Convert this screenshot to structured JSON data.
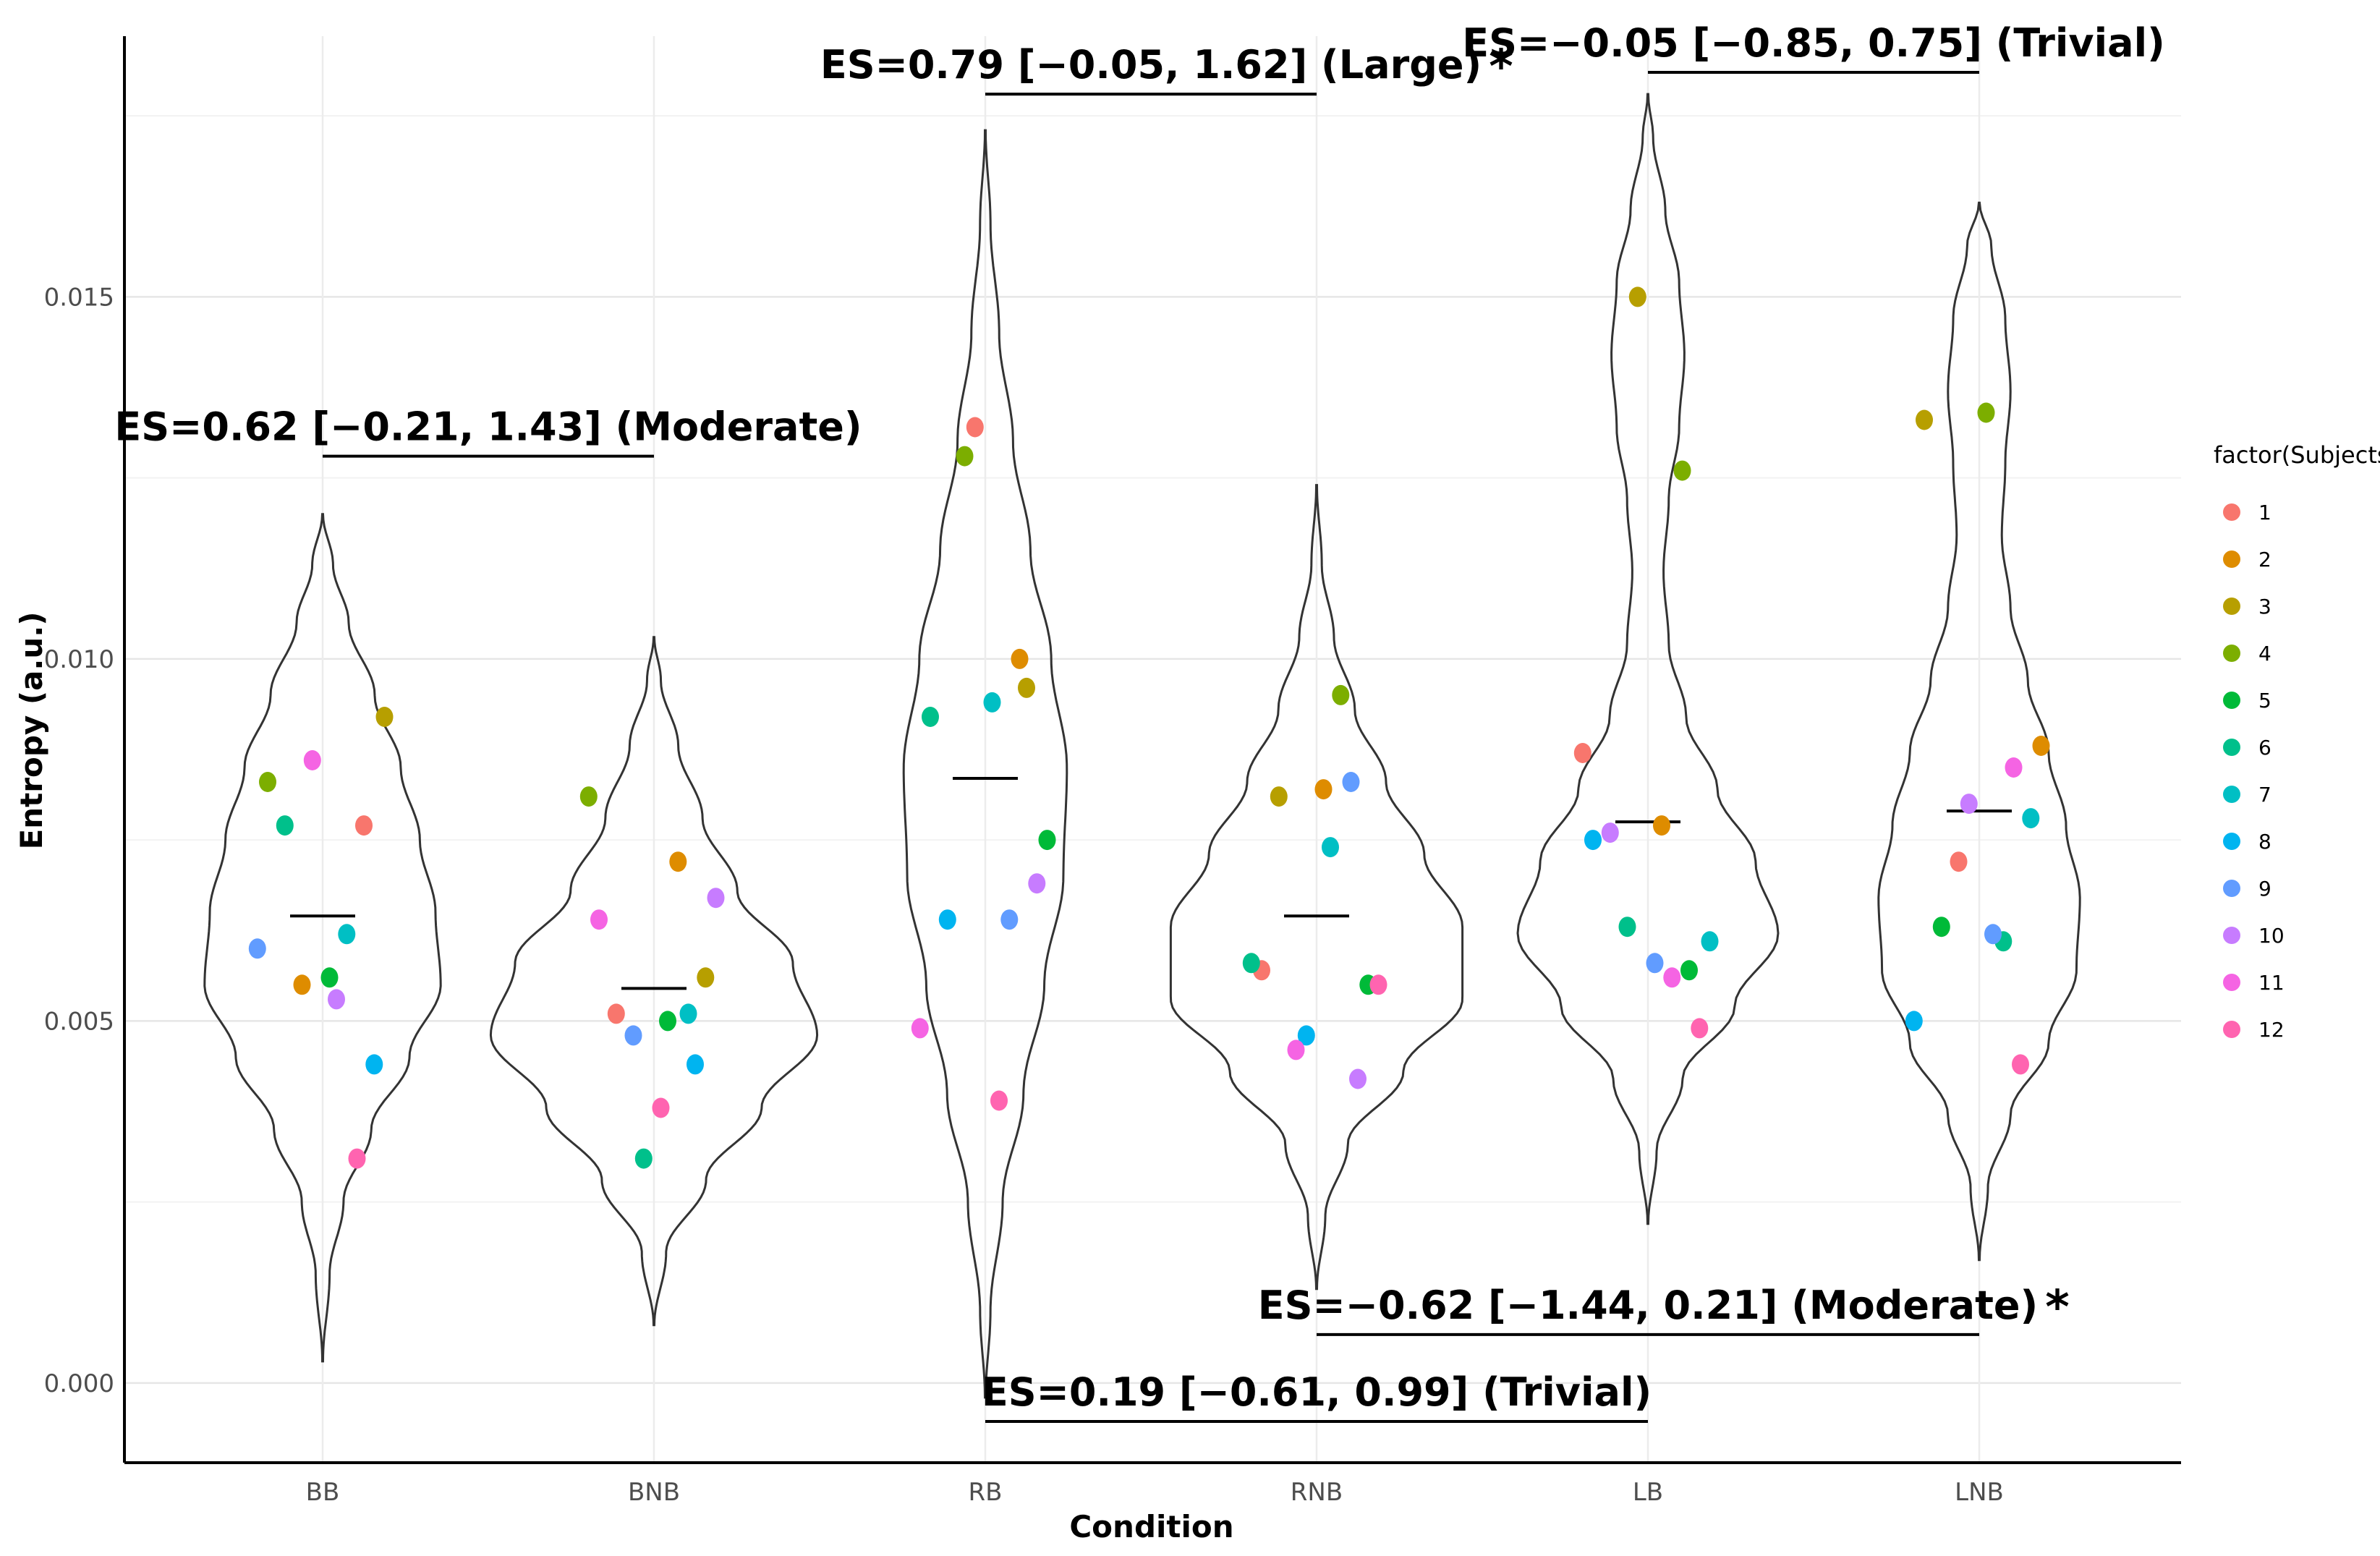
{
  "chart_data": {
    "type": "violin",
    "xlabel": "Condition",
    "ylabel": "Entropy (a.u.)",
    "ylim": [
      -0.0011,
      0.0186
    ],
    "y_ticks": [
      "0.000",
      "0.005",
      "0.010",
      "0.015"
    ],
    "y_tick_values": [
      0,
      0.005,
      0.01,
      0.015
    ],
    "grid": true,
    "categories": [
      "BB",
      "BNB",
      "RB",
      "RNB",
      "LB",
      "LNB"
    ],
    "legend": {
      "title": "factor(Subjects)",
      "position": "right",
      "entries": [
        "1",
        "2",
        "3",
        "4",
        "5",
        "6",
        "7",
        "8",
        "9",
        "10",
        "11",
        "12"
      ],
      "colors": [
        "#F8766D",
        "#DE8C00",
        "#B79F00",
        "#7CAE00",
        "#00BA38",
        "#00C08B",
        "#00BFC4",
        "#00B4F0",
        "#619CFF",
        "#C77CFF",
        "#F564E3",
        "#FF64B0"
      ]
    },
    "groups": [
      {
        "name": "BB",
        "mean": 0.00645,
        "range": [
          0.0003,
          0.012
        ],
        "density": [
          [
            0.0003,
            0.002
          ],
          [
            0.0015,
            0.04
          ],
          [
            0.0025,
            0.12
          ],
          [
            0.0035,
            0.28
          ],
          [
            0.0045,
            0.5
          ],
          [
            0.0055,
            0.68
          ],
          [
            0.0065,
            0.65
          ],
          [
            0.0075,
            0.56
          ],
          [
            0.0085,
            0.45
          ],
          [
            0.0095,
            0.3
          ],
          [
            0.0105,
            0.15
          ],
          [
            0.0113,
            0.06
          ],
          [
            0.012,
            0.002
          ]
        ],
        "points": [
          0.0077,
          0.0055,
          0.0092,
          0.0083,
          0.0056,
          0.0077,
          0.0062,
          0.0044,
          0.006,
          0.0053,
          0.0086,
          0.0031
        ]
      },
      {
        "name": "BNB",
        "mean": 0.00545,
        "range": [
          0.0008,
          0.0103
        ],
        "density": [
          [
            0.0008,
            0.002
          ],
          [
            0.0018,
            0.07
          ],
          [
            0.0028,
            0.3
          ],
          [
            0.0038,
            0.62
          ],
          [
            0.0048,
            0.94
          ],
          [
            0.0058,
            0.8
          ],
          [
            0.0068,
            0.48
          ],
          [
            0.0078,
            0.28
          ],
          [
            0.0088,
            0.14
          ],
          [
            0.0097,
            0.04
          ],
          [
            0.0103,
            0.002
          ]
        ],
        "points": [
          0.0051,
          0.0072,
          0.0056,
          0.0081,
          0.005,
          0.0031,
          0.0051,
          0.0044,
          0.0048,
          0.0067,
          0.0064,
          0.0038
        ]
      },
      {
        "name": "RB",
        "mean": 0.00835,
        "range": [
          -0.0002,
          0.0173
        ],
        "density": [
          [
            -0.0002,
            0.002
          ],
          [
            0.001,
            0.03
          ],
          [
            0.0025,
            0.1
          ],
          [
            0.004,
            0.22
          ],
          [
            0.0055,
            0.34
          ],
          [
            0.007,
            0.45
          ],
          [
            0.0085,
            0.47
          ],
          [
            0.01,
            0.38
          ],
          [
            0.0115,
            0.26
          ],
          [
            0.013,
            0.16
          ],
          [
            0.0145,
            0.08
          ],
          [
            0.016,
            0.03
          ],
          [
            0.0173,
            0.002
          ]
        ],
        "points": [
          0.0132,
          0.01,
          0.0096,
          0.0128,
          0.0075,
          0.0092,
          0.0094,
          0.0064,
          0.0064,
          0.0069,
          0.0049,
          0.0039
        ]
      },
      {
        "name": "RNB",
        "mean": 0.00645,
        "range": [
          0.0013,
          0.0124
        ],
        "density": [
          [
            0.0013,
            0.002
          ],
          [
            0.0023,
            0.05
          ],
          [
            0.0033,
            0.18
          ],
          [
            0.0043,
            0.5
          ],
          [
            0.0053,
            0.84
          ],
          [
            0.0063,
            0.84
          ],
          [
            0.0073,
            0.62
          ],
          [
            0.0083,
            0.4
          ],
          [
            0.0093,
            0.22
          ],
          [
            0.0103,
            0.1
          ],
          [
            0.0113,
            0.03
          ],
          [
            0.0124,
            0.002
          ]
        ],
        "points": [
          0.0057,
          0.0082,
          0.0081,
          0.0095,
          0.0055,
          0.0058,
          0.0074,
          0.0048,
          0.0083,
          0.0042,
          0.0046,
          0.0055
        ]
      },
      {
        "name": "LB",
        "mean": 0.00775,
        "range": [
          0.0022,
          0.0178
        ],
        "density": [
          [
            0.0022,
            0.002
          ],
          [
            0.0032,
            0.05
          ],
          [
            0.0042,
            0.2
          ],
          [
            0.0052,
            0.5
          ],
          [
            0.0062,
            0.75
          ],
          [
            0.0072,
            0.62
          ],
          [
            0.0082,
            0.4
          ],
          [
            0.0092,
            0.22
          ],
          [
            0.0102,
            0.12
          ],
          [
            0.0112,
            0.09
          ],
          [
            0.0122,
            0.12
          ],
          [
            0.0132,
            0.18
          ],
          [
            0.0142,
            0.21
          ],
          [
            0.0152,
            0.18
          ],
          [
            0.0162,
            0.1
          ],
          [
            0.0172,
            0.03
          ],
          [
            0.0178,
            0.002
          ]
        ],
        "points": [
          0.0087,
          0.0077,
          0.015,
          0.0126,
          0.0057,
          0.0063,
          0.0061,
          0.0075,
          0.0058,
          0.0076,
          0.0056,
          0.0049
        ]
      },
      {
        "name": "LNB",
        "mean": 0.0079,
        "range": [
          0.0017,
          0.0163
        ],
        "density": [
          [
            0.0017,
            0.002
          ],
          [
            0.0027,
            0.05
          ],
          [
            0.0037,
            0.18
          ],
          [
            0.0047,
            0.4
          ],
          [
            0.0057,
            0.56
          ],
          [
            0.0067,
            0.58
          ],
          [
            0.0077,
            0.5
          ],
          [
            0.0087,
            0.4
          ],
          [
            0.0097,
            0.28
          ],
          [
            0.0107,
            0.18
          ],
          [
            0.0117,
            0.13
          ],
          [
            0.0127,
            0.15
          ],
          [
            0.0137,
            0.18
          ],
          [
            0.0147,
            0.15
          ],
          [
            0.0157,
            0.07
          ],
          [
            0.0163,
            0.002
          ]
        ],
        "points": [
          0.0072,
          0.0088,
          0.0133,
          0.0134,
          0.0063,
          0.0061,
          0.0078,
          0.005,
          0.0062,
          0.008,
          0.0085,
          0.0044
        ]
      }
    ],
    "annotations": [
      {
        "text": "ES=0.62 [−0.21, 1.43] (Moderate)",
        "from": "BB",
        "to": "BNB",
        "y": 0.0128,
        "label_pos": "above",
        "star": false
      },
      {
        "text": "ES=0.79 [−0.05, 1.62] (Large)",
        "from": "RB",
        "to": "RNB",
        "y": 0.0178,
        "label_pos": "above",
        "star": true
      },
      {
        "text": "ES=−0.05 [−0.85, 0.75] (Trivial)",
        "from": "LB",
        "to": "LNB",
        "y": 0.0181,
        "label_pos": "above",
        "star": false
      },
      {
        "text": "ES=−0.62 [−1.44, 0.21] (Moderate)",
        "from": "RNB",
        "to": "LNB",
        "y": 0.00067,
        "label_pos": "above",
        "star": true
      },
      {
        "text": "ES=0.19 [−0.61, 0.99] (Trivial)",
        "from": "RB",
        "to": "LB",
        "y": -0.00053,
        "label_pos": "above",
        "star": false
      }
    ]
  }
}
